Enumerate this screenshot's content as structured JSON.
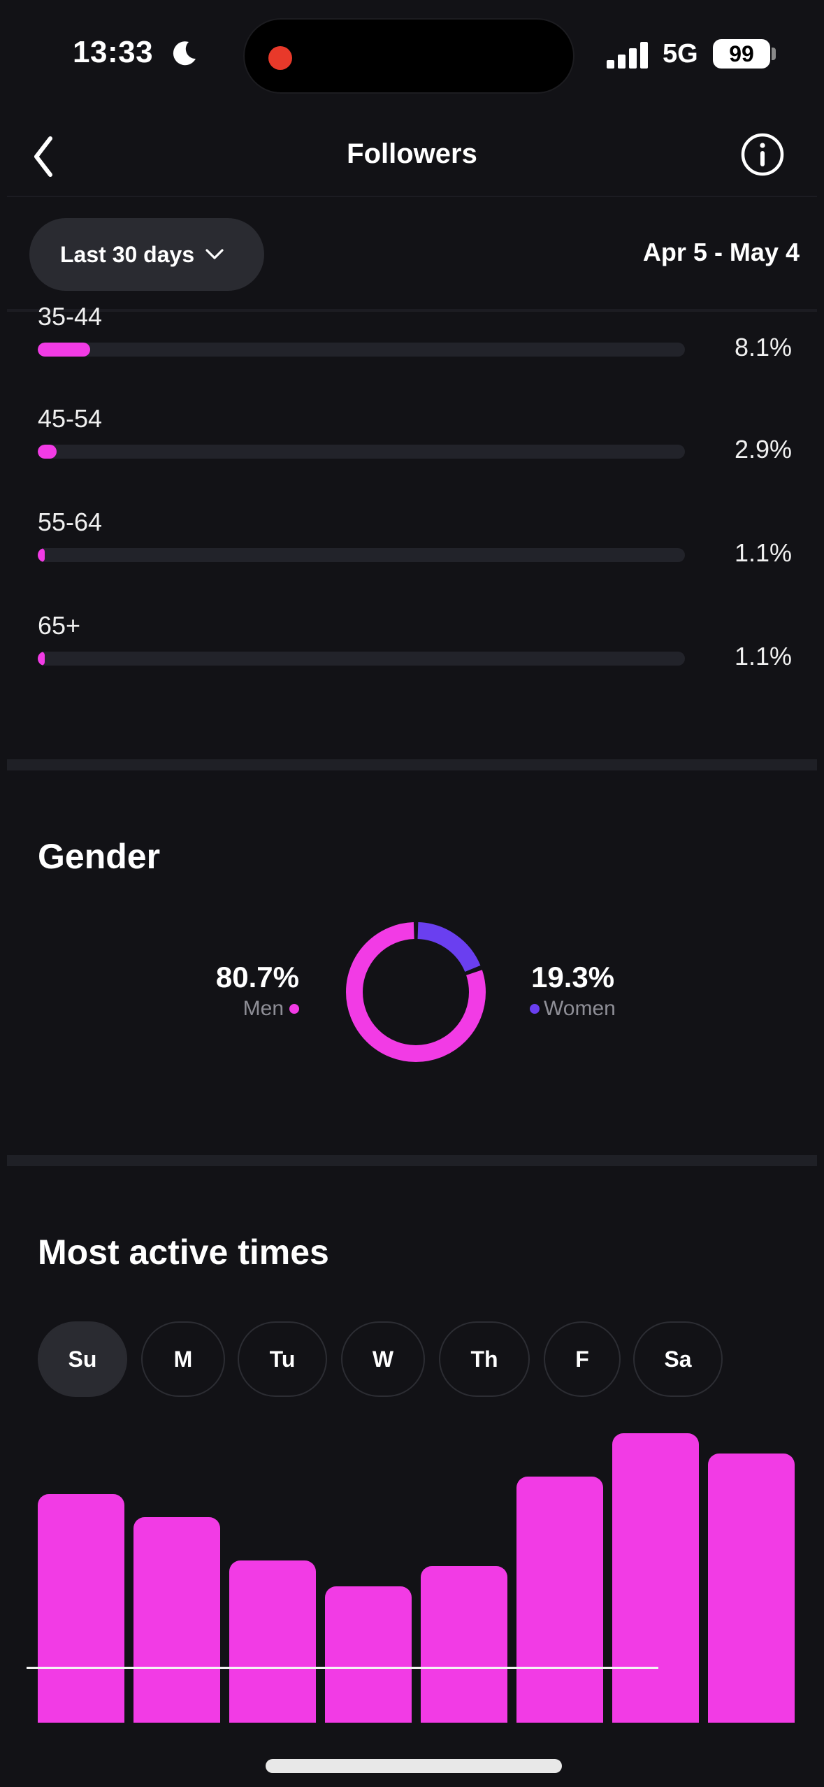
{
  "status_bar": {
    "time": "13:33",
    "network": "5G",
    "battery": "99",
    "icons": [
      "moon-icon",
      "signal-icon",
      "record-dot-icon"
    ]
  },
  "header": {
    "title": "Followers",
    "back_icon": "chevron-left-icon",
    "info_icon": "info-icon"
  },
  "filter": {
    "range_label": "Last 30 days",
    "date_range": "Apr 5 - May 4"
  },
  "age": {
    "rows": [
      {
        "label": "35-44",
        "pct": "8.1%",
        "value": 8.1
      },
      {
        "label": "45-54",
        "pct": "2.9%",
        "value": 2.9
      },
      {
        "label": "55-64",
        "pct": "1.1%",
        "value": 1.1
      },
      {
        "label": "65+",
        "pct": "1.1%",
        "value": 1.1
      }
    ]
  },
  "gender": {
    "title": "Gender",
    "men": {
      "value": "80.7%",
      "label": "Men",
      "fraction": 0.807,
      "color": "#f23be5"
    },
    "women": {
      "value": "19.3%",
      "label": "Women",
      "fraction": 0.193,
      "color": "#6a3ff0"
    }
  },
  "active_times": {
    "title": "Most active times",
    "days": [
      {
        "label": "Su",
        "active": true
      },
      {
        "label": "M",
        "active": false
      },
      {
        "label": "Tu",
        "active": false
      },
      {
        "label": "W",
        "active": false
      },
      {
        "label": "Th",
        "active": false
      },
      {
        "label": "F",
        "active": false
      },
      {
        "label": "Sa",
        "active": false
      }
    ]
  },
  "chart_data": {
    "type": "bar",
    "title": "Most active times",
    "categories": [
      "",
      "",
      "",
      "",
      "",
      "",
      "",
      ""
    ],
    "values": [
      79,
      71,
      56,
      47,
      54,
      85,
      100,
      93
    ],
    "ylim": [
      0,
      100
    ],
    "color": "#f23be5",
    "grid": false
  },
  "colors": {
    "background": "#121216",
    "accent": "#f23be5",
    "secondary": "#6a3ff0",
    "pill": "#2a2b31"
  }
}
